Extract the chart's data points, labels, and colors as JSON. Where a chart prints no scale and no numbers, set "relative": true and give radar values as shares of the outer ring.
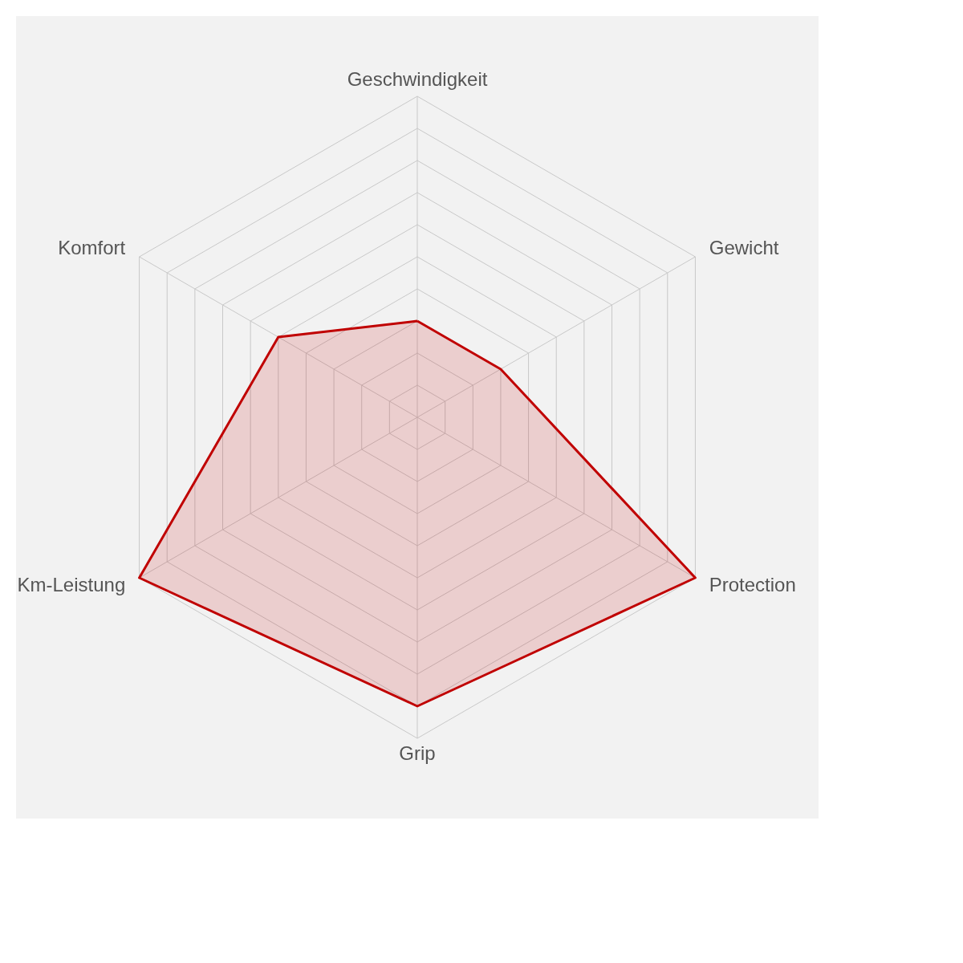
{
  "chart_data": {
    "type": "radar",
    "relative": true,
    "grid": true,
    "legend": false,
    "categories": [
      "Geschwindigkeit",
      "Gewicht",
      "Protection",
      "Grip",
      "Km-Leistung",
      "Komfort"
    ],
    "series": [
      {
        "color": "#c00000",
        "values": [
          0.3,
          0.3,
          1.0,
          0.9,
          1.0,
          0.5
        ]
      }
    ]
  }
}
